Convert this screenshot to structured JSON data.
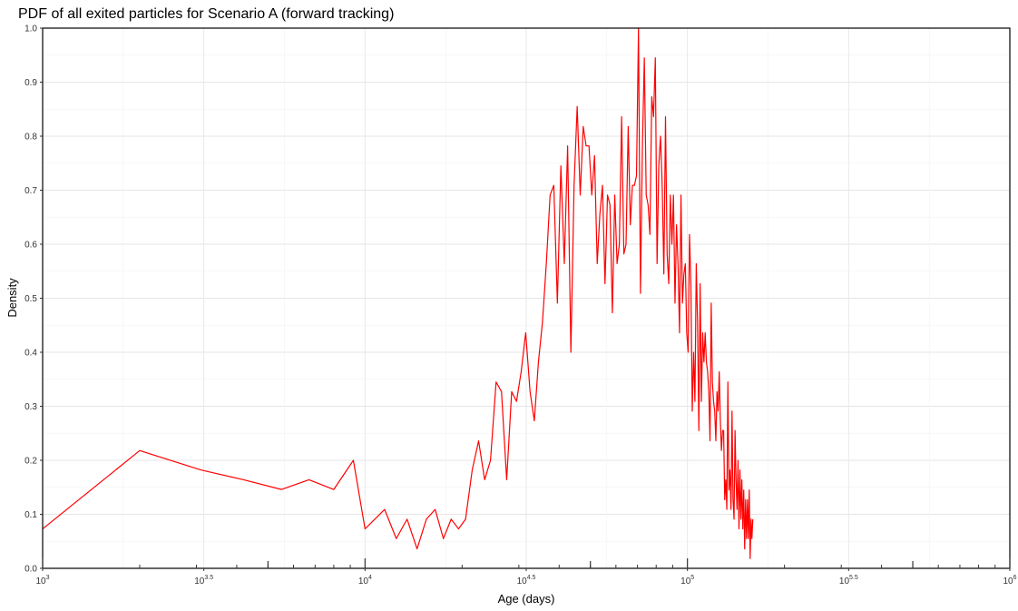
{
  "chart_data": {
    "type": "line",
    "title": "PDF of all exited particles for Scenario A (forward tracking)",
    "xlabel": "Age (days)",
    "ylabel": "Density",
    "x_scale": "log10",
    "xlim": [
      1000,
      1000000
    ],
    "ylim": [
      0,
      1
    ],
    "x_ticks": [
      {
        "base": "10",
        "exp": "3"
      },
      {
        "base": "10",
        "exp": "3.5"
      },
      {
        "base": "10",
        "exp": "4"
      },
      {
        "base": "10",
        "exp": "4.5"
      },
      {
        "base": "10",
        "exp": "5"
      },
      {
        "base": "10",
        "exp": "5.5"
      },
      {
        "base": "10",
        "exp": "6"
      }
    ],
    "y_ticks": [
      "0.0",
      "0.1",
      "0.2",
      "0.3",
      "0.4",
      "0.5",
      "0.6",
      "0.7",
      "0.8",
      "0.9",
      "1.0"
    ],
    "grid": true,
    "series": [
      {
        "color": "#ff0000",
        "points": [
          [
            1000,
            0.073
          ],
          [
            2000,
            0.218
          ],
          [
            3100,
            0.182
          ],
          [
            4200,
            0.164
          ],
          [
            5500,
            0.146
          ],
          [
            6700,
            0.164
          ],
          [
            8000,
            0.146
          ],
          [
            9200,
            0.2
          ],
          [
            10000,
            0.073
          ],
          [
            11500,
            0.109
          ],
          [
            12500,
            0.055
          ],
          [
            13500,
            0.091
          ],
          [
            14500,
            0.036
          ],
          [
            15500,
            0.091
          ],
          [
            16500,
            0.109
          ],
          [
            17500,
            0.055
          ],
          [
            18500,
            0.091
          ],
          [
            19500,
            0.073
          ],
          [
            20500,
            0.091
          ],
          [
            21500,
            0.182
          ],
          [
            22500,
            0.236
          ],
          [
            23500,
            0.164
          ],
          [
            24500,
            0.2
          ],
          [
            25500,
            0.345
          ],
          [
            26500,
            0.327
          ],
          [
            27500,
            0.164
          ],
          [
            28500,
            0.327
          ],
          [
            29500,
            0.309
          ],
          [
            30500,
            0.364
          ],
          [
            31500,
            0.436
          ],
          [
            32500,
            0.327
          ],
          [
            33500,
            0.273
          ],
          [
            34500,
            0.382
          ],
          [
            35500,
            0.455
          ],
          [
            36500,
            0.564
          ],
          [
            37500,
            0.691
          ],
          [
            38500,
            0.709
          ],
          [
            39500,
            0.491
          ],
          [
            40500,
            0.745
          ],
          [
            41500,
            0.564
          ],
          [
            42500,
            0.782
          ],
          [
            43500,
            0.4
          ],
          [
            44500,
            0.709
          ],
          [
            45500,
            0.855
          ],
          [
            46500,
            0.691
          ],
          [
            47500,
            0.818
          ],
          [
            48500,
            0.782
          ],
          [
            49500,
            0.782
          ],
          [
            50500,
            0.691
          ],
          [
            51500,
            0.764
          ],
          [
            52500,
            0.564
          ],
          [
            53500,
            0.655
          ],
          [
            54500,
            0.709
          ],
          [
            55500,
            0.527
          ],
          [
            56500,
            0.691
          ],
          [
            57500,
            0.673
          ],
          [
            58500,
            0.473
          ],
          [
            59500,
            0.691
          ],
          [
            60500,
            0.564
          ],
          [
            61500,
            0.6
          ],
          [
            62500,
            0.836
          ],
          [
            63500,
            0.582
          ],
          [
            64500,
            0.6
          ],
          [
            65500,
            0.818
          ],
          [
            66500,
            0.636
          ],
          [
            67500,
            0.709
          ],
          [
            68500,
            0.709
          ],
          [
            69500,
            0.727
          ],
          [
            70500,
            1.0
          ],
          [
            71500,
            0.509
          ],
          [
            72500,
            0.782
          ],
          [
            73500,
            0.945
          ],
          [
            74500,
            0.691
          ],
          [
            75500,
            0.673
          ],
          [
            76500,
            0.618
          ],
          [
            77500,
            0.873
          ],
          [
            78500,
            0.836
          ],
          [
            79500,
            0.945
          ],
          [
            80500,
            0.564
          ],
          [
            81500,
            0.745
          ],
          [
            82500,
            0.8
          ],
          [
            83500,
            0.709
          ],
          [
            84500,
            0.545
          ],
          [
            85500,
            0.836
          ],
          [
            86500,
            0.582
          ],
          [
            87500,
            0.527
          ],
          [
            88500,
            0.691
          ],
          [
            89500,
            0.6
          ],
          [
            90500,
            0.691
          ],
          [
            91500,
            0.491
          ],
          [
            92500,
            0.636
          ],
          [
            93500,
            0.564
          ],
          [
            94500,
            0.436
          ],
          [
            95500,
            0.691
          ],
          [
            96500,
            0.491
          ],
          [
            97500,
            0.545
          ],
          [
            98500,
            0.564
          ],
          [
            99500,
            0.436
          ],
          [
            100500,
            0.4
          ],
          [
            101500,
            0.618
          ],
          [
            102500,
            0.527
          ],
          [
            103500,
            0.291
          ],
          [
            104500,
            0.4
          ],
          [
            105500,
            0.309
          ],
          [
            106500,
            0.564
          ],
          [
            107500,
            0.455
          ],
          [
            108500,
            0.255
          ],
          [
            109500,
            0.527
          ],
          [
            110500,
            0.309
          ],
          [
            111500,
            0.436
          ],
          [
            112500,
            0.382
          ],
          [
            113500,
            0.436
          ],
          [
            114500,
            0.382
          ],
          [
            115500,
            0.364
          ],
          [
            116500,
            0.327
          ],
          [
            117500,
            0.236
          ],
          [
            118500,
            0.491
          ],
          [
            119500,
            0.345
          ],
          [
            120500,
            0.309
          ],
          [
            121500,
            0.291
          ],
          [
            122500,
            0.236
          ],
          [
            123500,
            0.327
          ],
          [
            124500,
            0.291
          ],
          [
            125500,
            0.364
          ],
          [
            126500,
            0.273
          ],
          [
            127500,
            0.218
          ],
          [
            128500,
            0.255
          ],
          [
            129500,
            0.255
          ],
          [
            130500,
            0.127
          ],
          [
            131500,
            0.164
          ],
          [
            132500,
            0.109
          ],
          [
            133500,
            0.345
          ],
          [
            134500,
            0.145
          ],
          [
            135500,
            0.182
          ],
          [
            136500,
            0.109
          ],
          [
            137500,
            0.291
          ],
          [
            138500,
            0.127
          ],
          [
            139500,
            0.091
          ],
          [
            140500,
            0.255
          ],
          [
            141500,
            0.164
          ],
          [
            142500,
            0.109
          ],
          [
            143500,
            0.2
          ],
          [
            144500,
            0.073
          ],
          [
            145500,
            0.182
          ],
          [
            146500,
            0.091
          ],
          [
            147500,
            0.164
          ],
          [
            148500,
            0.073
          ],
          [
            149500,
            0.145
          ],
          [
            150500,
            0.036
          ],
          [
            151500,
            0.127
          ],
          [
            152500,
            0.055
          ],
          [
            153500,
            0.127
          ],
          [
            154500,
            0.055
          ],
          [
            155500,
            0.145
          ],
          [
            156500,
            0.018
          ],
          [
            157500,
            0.091
          ],
          [
            158500,
            0.055
          ],
          [
            159500,
            0.091
          ]
        ]
      }
    ]
  }
}
